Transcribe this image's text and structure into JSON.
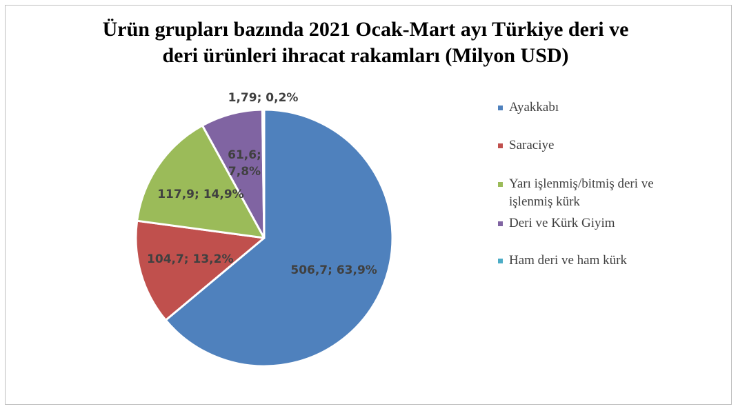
{
  "chart_data": {
    "type": "pie",
    "title": "Ürün grupları bazında 2021 Ocak-Mart ayı Türkiye deri ve deri ürünleri ihracat rakamları (Milyon USD)",
    "categories": [
      "Ayakkabı",
      "Saraciye",
      "Yarı işlenmiş/bitmiş deri ve işlenmiş kürk",
      "Deri ve Kürk Giyim",
      "Ham deri ve ham kürk"
    ],
    "values": [
      506.7,
      104.7,
      117.9,
      61.6,
      1.79
    ],
    "value_labels": [
      "506,7; 63,9%",
      "104,7; 13,2%",
      "117,9; 14,9%",
      "61,6; 7,8%",
      "1,79; 0,2%"
    ],
    "colors": [
      "#4f81bd",
      "#c0504d",
      "#9bbb59",
      "#8064a2",
      "#4bacc6"
    ],
    "legend": "right"
  }
}
